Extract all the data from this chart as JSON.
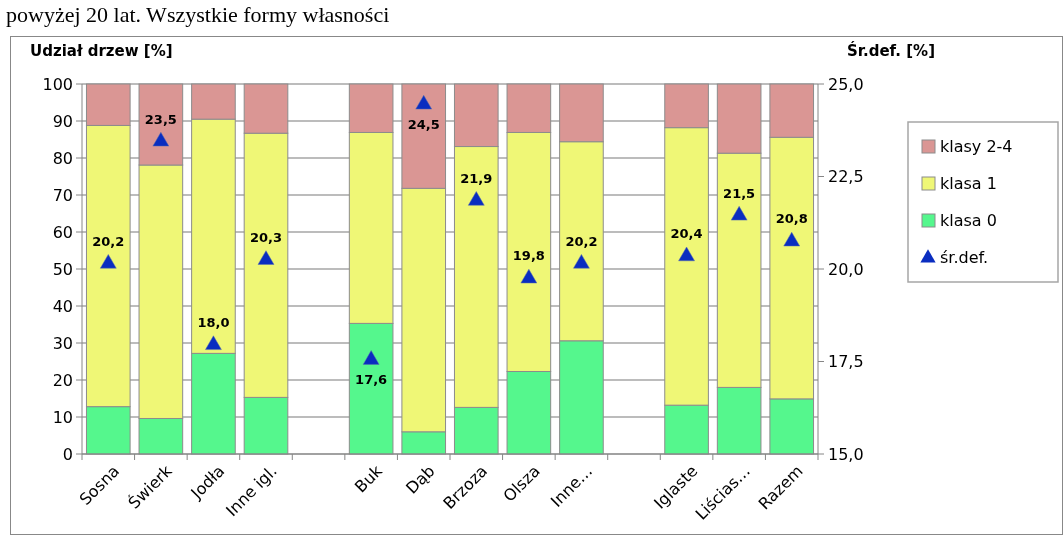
{
  "chart_data": {
    "type": "bar",
    "stacked": true,
    "title": "powyżej 20 lat. Wszystkie formy własności",
    "ylabel": "Udział drzew [%]",
    "y2label": "Śr.def. [%]",
    "categories": [
      "Sosna",
      "Świerk",
      "Jodła",
      "Inne igl.",
      null,
      "Buk",
      "Dąb",
      "Brzoza",
      "Olsza",
      "Inne…",
      null,
      "Iglaste",
      "Liścias…",
      "Razem"
    ],
    "series": [
      {
        "name": "klasa 0",
        "color": "#55f78d",
        "values": [
          12.8,
          9.6,
          27.2,
          15.3,
          null,
          35.3,
          6.0,
          12.6,
          22.3,
          30.6,
          null,
          13.2,
          18.0,
          14.9
        ]
      },
      {
        "name": "klasa 1",
        "color": "#eff776",
        "values": [
          76.0,
          68.5,
          63.3,
          71.4,
          null,
          51.6,
          65.8,
          70.5,
          64.6,
          53.8,
          null,
          75.0,
          63.3,
          70.7
        ]
      },
      {
        "name": "klasy 2-4",
        "color": "#da9694",
        "values": [
          11.2,
          21.9,
          9.5,
          13.3,
          null,
          13.1,
          28.2,
          16.9,
          13.1,
          15.6,
          null,
          11.8,
          18.7,
          14.4
        ]
      },
      {
        "name": "śr.def.",
        "type": "scatter",
        "axis": "y2",
        "color": "#0a2dc0",
        "marker": "triangle",
        "values": [
          20.2,
          23.5,
          18.0,
          20.3,
          null,
          17.6,
          24.5,
          21.9,
          19.8,
          20.2,
          null,
          20.4,
          21.5,
          20.8
        ],
        "value_labels": [
          "20,2",
          "23,5",
          "18,0",
          "20,3",
          null,
          "17,6",
          "24,5",
          "21,9",
          "19,8",
          "20,2",
          null,
          "20,4",
          "21,5",
          "20,8"
        ]
      }
    ],
    "ylim": [
      0,
      100
    ],
    "yticks": [
      0,
      10,
      20,
      30,
      40,
      50,
      60,
      70,
      80,
      90,
      100
    ],
    "y2lim": [
      15,
      25
    ],
    "y2ticks": [
      {
        "value": 15,
        "label": "15,0"
      },
      {
        "value": 17.5,
        "label": "17,5"
      },
      {
        "value": 20,
        "label": "20,0"
      },
      {
        "value": 22.5,
        "label": "22,5"
      },
      {
        "value": 25,
        "label": "25,0"
      }
    ],
    "grid": "y",
    "legend": "right"
  }
}
